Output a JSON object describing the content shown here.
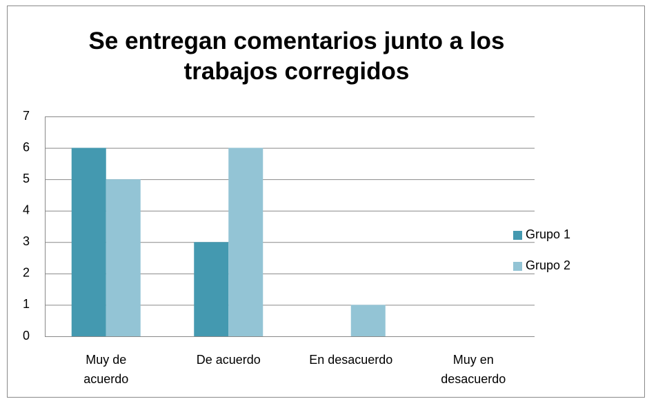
{
  "chart_data": {
    "type": "bar",
    "title": "Se entregan comentarios junto a los trabajos corregidos",
    "categories": [
      "Muy de acuerdo",
      "De acuerdo",
      "En desacuerdo",
      "Muy en desacuerdo"
    ],
    "series": [
      {
        "name": "Grupo 1",
        "color": "#4499b0",
        "values": [
          6,
          3,
          0,
          0
        ]
      },
      {
        "name": "Grupo 2",
        "color": "#93c4d5",
        "values": [
          5,
          6,
          1,
          0
        ]
      }
    ],
    "ylim": [
      0,
      7
    ],
    "yticks": [
      0,
      1,
      2,
      3,
      4,
      5,
      6,
      7
    ],
    "grid": true,
    "legend": "right"
  }
}
